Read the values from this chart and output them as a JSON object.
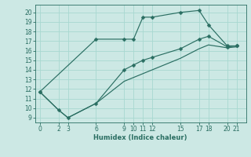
{
  "xlabel": "Humidex (Indice chaleur)",
  "bg_color": "#cce8e4",
  "grid_color": "#a8d8d0",
  "line_color": "#2a6e62",
  "ylim": [
    8.5,
    20.8
  ],
  "xlim": [
    -0.5,
    22.0
  ],
  "yticks": [
    9,
    10,
    11,
    12,
    13,
    14,
    15,
    16,
    17,
    18,
    19,
    20
  ],
  "xticks": [
    0,
    2,
    3,
    6,
    9,
    10,
    11,
    12,
    15,
    17,
    18,
    20,
    21
  ],
  "line1_x": [
    0,
    6,
    9,
    10,
    11,
    12,
    15,
    17,
    18,
    20,
    21
  ],
  "line1_y": [
    11.7,
    17.2,
    17.2,
    17.2,
    19.5,
    19.5,
    20.0,
    20.2,
    18.7,
    16.5,
    16.5
  ],
  "line2_x": [
    0,
    2,
    3,
    6,
    9,
    10,
    11,
    12,
    15,
    17,
    18,
    20,
    21
  ],
  "line2_y": [
    11.7,
    9.8,
    9.0,
    10.5,
    14.0,
    14.5,
    15.0,
    15.3,
    16.2,
    17.2,
    17.5,
    16.4,
    16.5
  ],
  "line3_x": [
    0,
    2,
    3,
    6,
    9,
    10,
    11,
    12,
    15,
    17,
    18,
    20,
    21
  ],
  "line3_y": [
    11.7,
    9.8,
    9.0,
    10.5,
    12.8,
    13.2,
    13.6,
    14.0,
    15.2,
    16.2,
    16.6,
    16.3,
    16.4
  ]
}
